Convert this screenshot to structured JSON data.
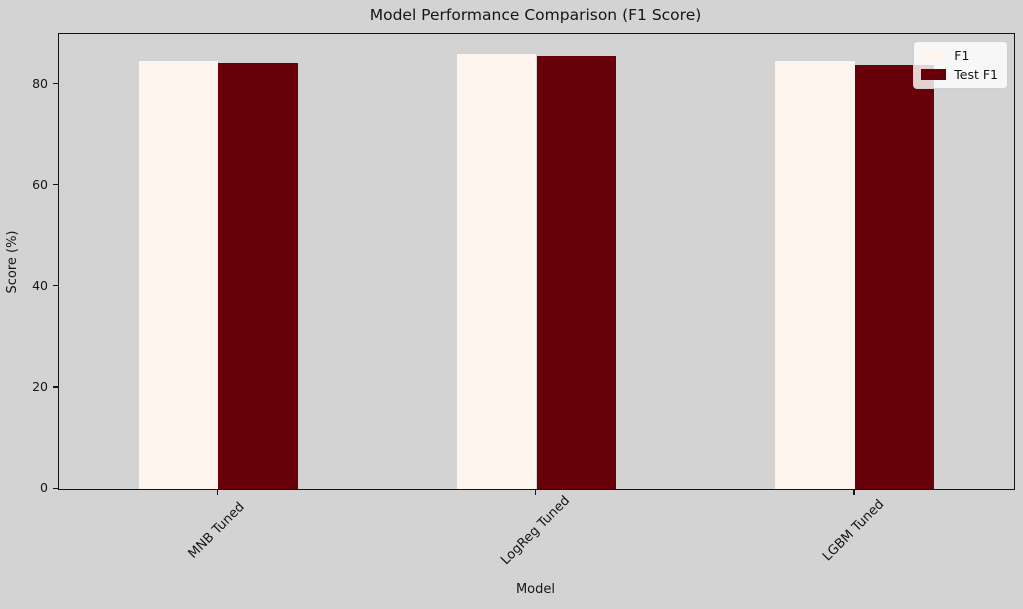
{
  "figure": {
    "background": "#d3d3d3",
    "plot_background": "#d3d3d3",
    "spine_color": "#141414"
  },
  "chart_data": {
    "type": "bar",
    "title": "Model Performance Comparison (F1 Score)",
    "xlabel": "Model",
    "ylabel": "Score (%)",
    "categories": [
      "MNB Tuned",
      "LogReg Tuned",
      "LGBM Tuned"
    ],
    "series": [
      {
        "name": "F1",
        "color": "#fdf4ed",
        "values": [
          84.7,
          86.0,
          84.7
        ]
      },
      {
        "name": "Test F1",
        "color": "#68000a",
        "values": [
          84.2,
          85.6,
          83.9
        ]
      }
    ],
    "ylim": [
      0,
      90
    ],
    "yticks": [
      0,
      20,
      40,
      60,
      80
    ],
    "bar_relative_width": 0.25,
    "legend_position": "upper-right",
    "grid": false
  }
}
